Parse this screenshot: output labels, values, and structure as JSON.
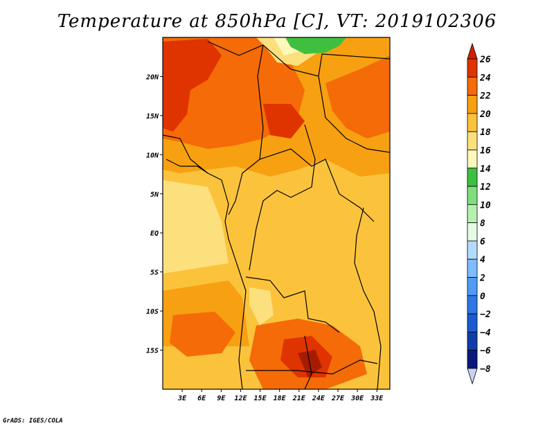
{
  "title": "Temperature at 850hPa [C], VT: 2019102306",
  "credit": "GrADS: IGES/COLA",
  "map": {
    "lon_range": [
      0,
      35
    ],
    "lat_range": [
      -20,
      25
    ],
    "lon_ticks": [
      {
        "value": 3,
        "label": "3E"
      },
      {
        "value": 6,
        "label": "6E"
      },
      {
        "value": 9,
        "label": "9E"
      },
      {
        "value": 12,
        "label": "12E"
      },
      {
        "value": 15,
        "label": "15E"
      },
      {
        "value": 18,
        "label": "18E"
      },
      {
        "value": 21,
        "label": "21E"
      },
      {
        "value": 24,
        "label": "24E"
      },
      {
        "value": 27,
        "label": "27E"
      },
      {
        "value": 30,
        "label": "30E"
      },
      {
        "value": 33,
        "label": "33E"
      }
    ],
    "lat_ticks": [
      {
        "value": 20,
        "label": "20N"
      },
      {
        "value": 15,
        "label": "15N"
      },
      {
        "value": 10,
        "label": "10N"
      },
      {
        "value": 5,
        "label": "5N"
      },
      {
        "value": 0,
        "label": "EQ"
      },
      {
        "value": -5,
        "label": "5S"
      },
      {
        "value": -10,
        "label": "10S"
      },
      {
        "value": -15,
        "label": "15S"
      }
    ]
  },
  "colorbar": {
    "levels": [
      26,
      24,
      22,
      20,
      18,
      16,
      14,
      12,
      10,
      8,
      6,
      4,
      2,
      0,
      -2,
      -4,
      -6,
      -8
    ],
    "colors": [
      "#a51c00",
      "#df3300",
      "#f46b08",
      "#f7a012",
      "#fbc33c",
      "#fde07e",
      "#fff8bc",
      "#3fbf3f",
      "#7fdf7f",
      "#b6f0b1",
      "#e6fbe6",
      "#b3dbff",
      "#7dbcff",
      "#4f9bf6",
      "#2f76e6",
      "#1c5ad2",
      "#103da8",
      "#0a1a7a"
    ],
    "top_color": "#d42000",
    "bottom_color": "#cad2f3"
  }
}
